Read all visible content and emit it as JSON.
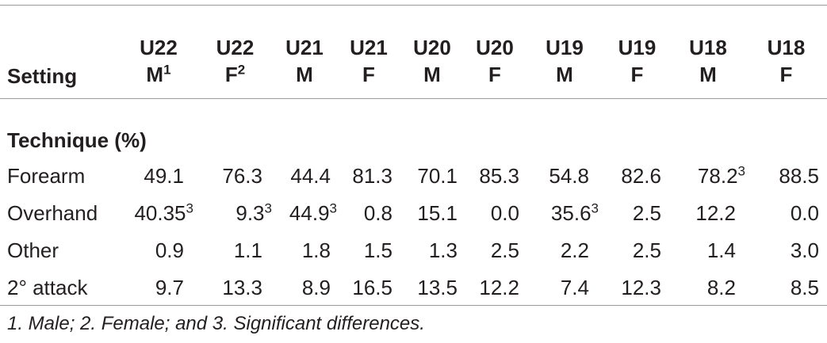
{
  "table": {
    "header": {
      "setting_label": "Setting",
      "columns": [
        {
          "line1": "U22",
          "line2": "M",
          "sup": "1"
        },
        {
          "line1": "U22",
          "line2": "F",
          "sup": "2"
        },
        {
          "line1": "U21",
          "line2": "M",
          "sup": ""
        },
        {
          "line1": "U21",
          "line2": "F",
          "sup": ""
        },
        {
          "line1": "U20",
          "line2": "M",
          "sup": ""
        },
        {
          "line1": "U20",
          "line2": "F",
          "sup": ""
        },
        {
          "line1": "U19",
          "line2": "M",
          "sup": ""
        },
        {
          "line1": "U19",
          "line2": "F",
          "sup": ""
        },
        {
          "line1": "U18",
          "line2": "M",
          "sup": ""
        },
        {
          "line1": "U18",
          "line2": "F",
          "sup": ""
        }
      ]
    },
    "section_title": "Technique (%)",
    "rows": [
      {
        "label": "Forearm",
        "cells": [
          {
            "v": "49.1",
            "sup": ""
          },
          {
            "v": "76.3",
            "sup": ""
          },
          {
            "v": "44.4",
            "sup": ""
          },
          {
            "v": "81.3",
            "sup": ""
          },
          {
            "v": "70.1",
            "sup": ""
          },
          {
            "v": "85.3",
            "sup": ""
          },
          {
            "v": "54.8",
            "sup": ""
          },
          {
            "v": "82.6",
            "sup": ""
          },
          {
            "v": "78.2",
            "sup": "3"
          },
          {
            "v": "88.5",
            "sup": ""
          }
        ]
      },
      {
        "label": "Overhand",
        "cells": [
          {
            "v": "40.35",
            "sup": "3"
          },
          {
            "v": "9.3",
            "sup": "3"
          },
          {
            "v": "44.9",
            "sup": "3"
          },
          {
            "v": "0.8",
            "sup": ""
          },
          {
            "v": "15.1",
            "sup": ""
          },
          {
            "v": "0.0",
            "sup": ""
          },
          {
            "v": "35.6",
            "sup": "3"
          },
          {
            "v": "2.5",
            "sup": ""
          },
          {
            "v": "12.2",
            "sup": ""
          },
          {
            "v": "0.0",
            "sup": ""
          }
        ]
      },
      {
        "label": "Other",
        "cells": [
          {
            "v": "0.9",
            "sup": ""
          },
          {
            "v": "1.1",
            "sup": ""
          },
          {
            "v": "1.8",
            "sup": ""
          },
          {
            "v": "1.5",
            "sup": ""
          },
          {
            "v": "1.3",
            "sup": ""
          },
          {
            "v": "2.5",
            "sup": ""
          },
          {
            "v": "2.2",
            "sup": ""
          },
          {
            "v": "2.5",
            "sup": ""
          },
          {
            "v": "1.4",
            "sup": ""
          },
          {
            "v": "3.0",
            "sup": ""
          }
        ]
      },
      {
        "label": "2° attack",
        "cells": [
          {
            "v": "9.7",
            "sup": ""
          },
          {
            "v": "13.3",
            "sup": ""
          },
          {
            "v": "8.9",
            "sup": ""
          },
          {
            "v": "16.5",
            "sup": ""
          },
          {
            "v": "13.5",
            "sup": ""
          },
          {
            "v": "12.2",
            "sup": ""
          },
          {
            "v": "7.4",
            "sup": ""
          },
          {
            "v": "12.3",
            "sup": ""
          },
          {
            "v": "8.2",
            "sup": ""
          },
          {
            "v": "8.5",
            "sup": ""
          }
        ]
      }
    ],
    "footnote": "1. Male; 2. Female; and 3. Significant differences."
  }
}
